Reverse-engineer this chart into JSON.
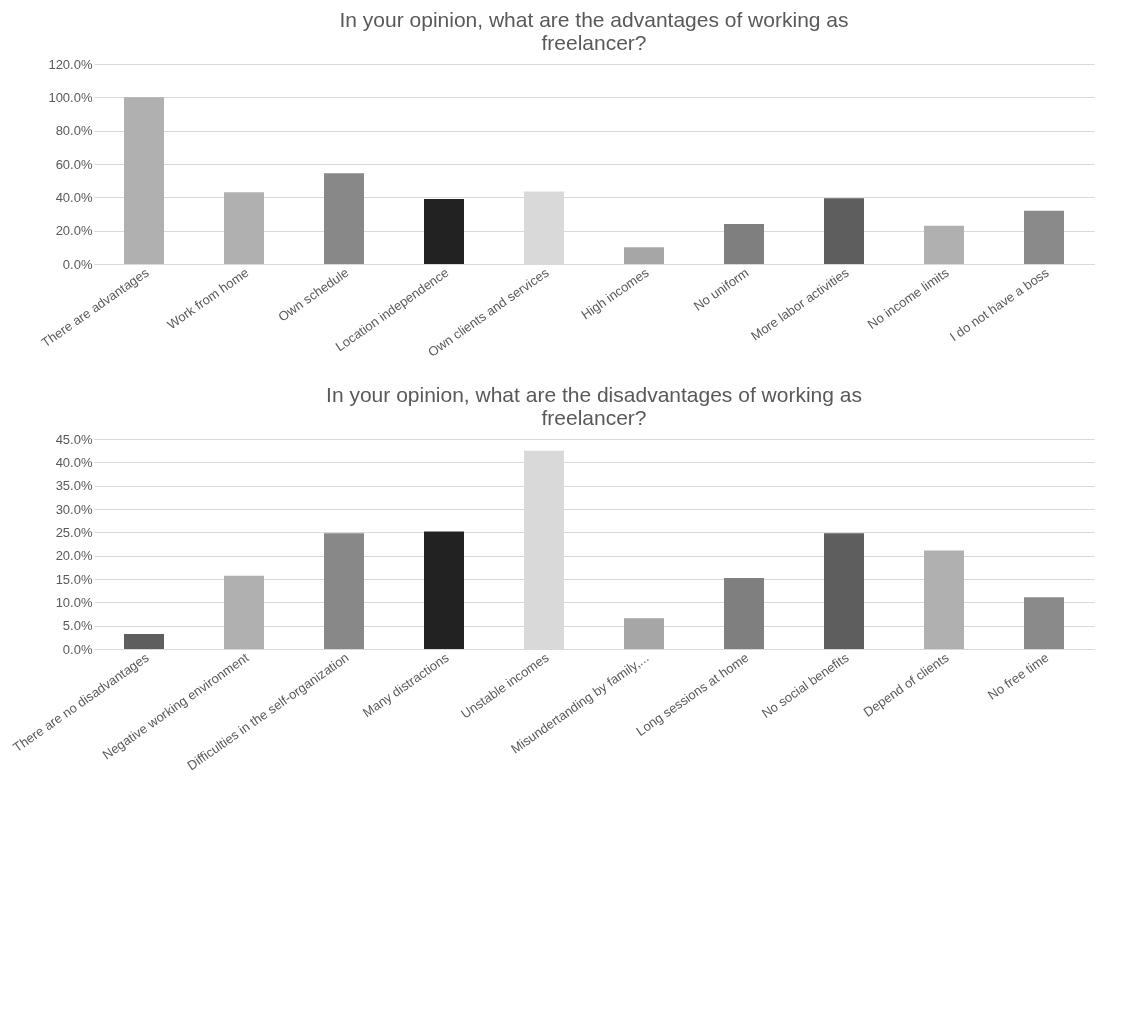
{
  "chart_data": [
    {
      "type": "bar",
      "title": "In your opinion, what are the advantages of working as freelancer?",
      "categories": [
        "There are advantages",
        "Work from home",
        "Own schedule",
        "Location independence",
        "Own clients and services",
        "High incomes",
        "No uniform",
        "More labor activities",
        "No income limits",
        "I do not have a boss"
      ],
      "values": [
        100,
        43,
        54.5,
        39,
        43.5,
        10,
        24,
        39.5,
        23,
        32
      ],
      "colors": [
        "#b0b0b0",
        "#b0b0b0",
        "#888888",
        "#222222",
        "#d9d9d9",
        "#a6a6a6",
        "#7f7f7f",
        "#5e5e5e",
        "#b0b0b0",
        "#8a8a8a"
      ],
      "ylim": [
        0,
        120
      ],
      "yticks": [
        {
          "value": 0,
          "label": "0.0%"
        },
        {
          "value": 20,
          "label": "20.0%"
        },
        {
          "value": 40,
          "label": "40.0%"
        },
        {
          "value": 60,
          "label": "60.0%"
        },
        {
          "value": 80,
          "label": "80.0%"
        },
        {
          "value": 100,
          "label": "100.0%"
        },
        {
          "value": 120,
          "label": "120.0%"
        }
      ],
      "grid": "y"
    },
    {
      "type": "bar",
      "title": "In your opinion, what are the disadvantages of working as freelancer?",
      "categories": [
        "There are no disadvantages",
        "Negative working environment",
        "Difficulties in the self-organization",
        "Many distractions",
        "Unstable incomes",
        "Misundertanding by family,...",
        "Long sessions at home",
        "No social benefits",
        "Depend of clients",
        "No free time"
      ],
      "values": [
        3.2,
        15.7,
        24.8,
        25.2,
        42.5,
        6.6,
        15.2,
        24.8,
        21.1,
        11.1
      ],
      "colors": [
        "#5e5e5e",
        "#b0b0b0",
        "#888888",
        "#222222",
        "#d9d9d9",
        "#a6a6a6",
        "#7f7f7f",
        "#5e5e5e",
        "#b0b0b0",
        "#8a8a8a"
      ],
      "ylim": [
        0,
        45
      ],
      "yticks": [
        {
          "value": 0,
          "label": "0.0%"
        },
        {
          "value": 5,
          "label": "5.0%"
        },
        {
          "value": 10,
          "label": "10.0%"
        },
        {
          "value": 15,
          "label": "15.0%"
        },
        {
          "value": 20,
          "label": "20.0%"
        },
        {
          "value": 25,
          "label": "25.0%"
        },
        {
          "value": 30,
          "label": "30.0%"
        },
        {
          "value": 35,
          "label": "35.0%"
        },
        {
          "value": 40,
          "label": "40.0%"
        },
        {
          "value": 45,
          "label": "45.0%"
        }
      ],
      "grid": "y"
    }
  ]
}
